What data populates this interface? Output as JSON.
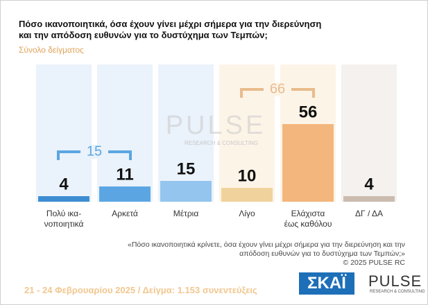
{
  "header": {
    "title": "Πόσο ικανοποιητικά, όσα έχουν γίνει μέχρι σήμερα για την διερεύνηση\nκαι την απόδοση ευθυνών για το δυστύχημα των Τεμπών;",
    "subtitle": "Σύνολο δείγματος"
  },
  "chart_data": {
    "type": "bar",
    "categories": [
      "Πολύ ικα-\nνοποιητικά",
      "Αρκετά",
      "Μέτρια",
      "Λίγο",
      "Ελάχιστα\nέως καθόλου",
      "ΔΓ / ΔΑ"
    ],
    "values": [
      4,
      11,
      15,
      10,
      56,
      4
    ],
    "colors": [
      "#3d8dd2",
      "#5ba6e2",
      "#93c5ee",
      "#f0d39c",
      "#f3b67c",
      "#cbbcaf"
    ],
    "column_colors": [
      "#eaf2fb",
      "#eaf2fb",
      "#eaf2fb",
      "#fdf4e8",
      "#fdf4e8",
      "#f4f1ef"
    ],
    "ylim": [
      0,
      100
    ],
    "groups": [
      {
        "total": 15,
        "members": [
          "Πολύ ικα-\nνοποιητικά",
          "Αρκετά"
        ],
        "color": "#5ba6e2"
      },
      {
        "total": 66,
        "members": [
          "Λίγο",
          "Ελάχιστα\nέως καθόλου"
        ],
        "color": "#e9bb8c"
      }
    ],
    "watermark": "PULSE",
    "watermark_sub": "RESEARCH & CONSULTING"
  },
  "footer": {
    "question": "«Πόσο ικανοποιητικά κρίνετε, όσα έχουν γίνει μέχρι σήμερα για την διερεύνηση και την\nαπόδοση ευθυνών για το δυστύχημα των Τεμπών;»",
    "copyright": "©  2025  PULSE RC",
    "fieldwork": "21 - 24 Φεβρουαρίου 2025  /  Δείγμα:  1.153 συνεντεύξεις",
    "logo_left": "ΣΚΑΪ",
    "logo_right": "PULSE",
    "logo_right_sub": "RESEARCH & CONSULTING"
  }
}
